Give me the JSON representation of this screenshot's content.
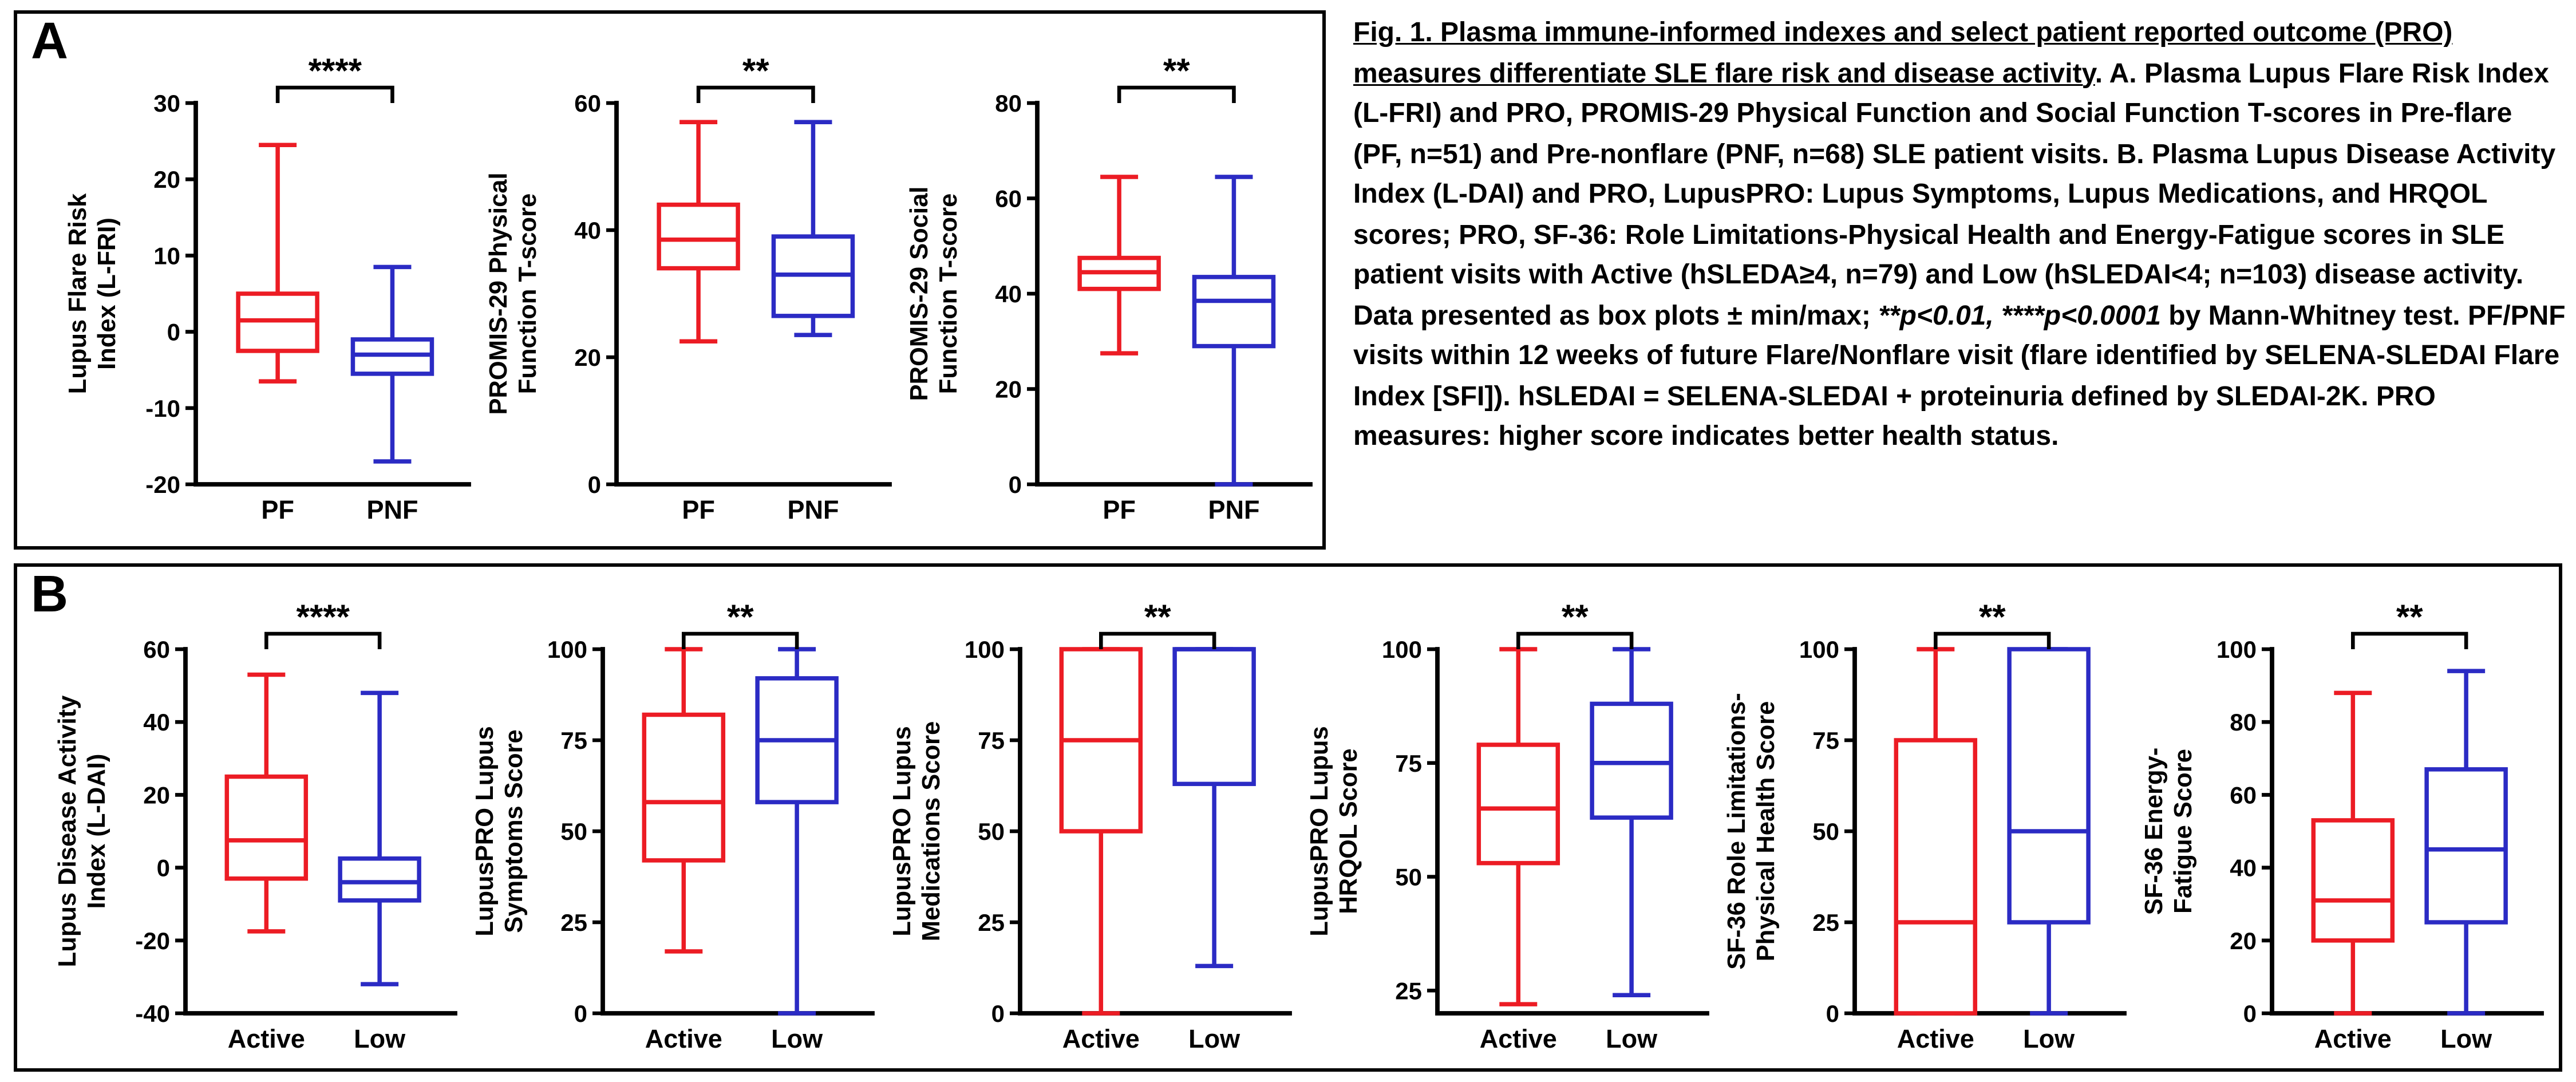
{
  "figure": {
    "panel_a_label": "A",
    "panel_b_label": "B",
    "group_colors": {
      "red": "#EC1C24",
      "blue": "#2B2BC4"
    }
  },
  "caption": {
    "segments": [
      {
        "text": "Fig. 1. ",
        "bold": true,
        "underline": true
      },
      {
        "text": "Plasma immune-informed indexes and select patient reported outcome (PRO) measures differentiate SLE flare risk and disease activity",
        "underline": true
      },
      {
        "text": ". "
      },
      {
        "text": "A.",
        "bold": true
      },
      {
        "text": " Plasma Lupus Flare Risk Index (L-FRI) and PRO, PROMIS-29 Physical Function and Social Function T-scores in Pre-flare (PF, n=51) and Pre-nonflare (PNF, n=68) SLE patient visits. "
      },
      {
        "text": "B.",
        "bold": true
      },
      {
        "text": " Plasma Lupus Disease Activity Index (L-DAI) and PRO, LupusPRO: Lupus Symptoms, Lupus Medications, and HRQOL scores; PRO, SF-36: Role Limitations-Physical Health and Energy-Fatigue scores in SLE patient visits with Active (hSLEDA≥4, n=79) and Low (hSLEDAI<4; n=103) disease activity. Data presented as box plots ± min/max; "
      },
      {
        "text": "**p<0.01, ****p<0.0001",
        "bold": true,
        "italic": true
      },
      {
        "text": " by Mann-Whitney test. PF/PNF visits within 12 weeks of future Flare/Nonflare visit (flare identified by SELENA-SLEDAI Flare Index [SFI]). hSLEDAI = SELENA-SLEDAI + proteinuria defined by SLEDAI-2K. PRO measures: higher score indicates better health status."
      }
    ]
  },
  "chart_data": [
    {
      "panel": "A",
      "type": "box",
      "id": "l-fri",
      "title": "",
      "xlabel": "",
      "ylabel_lines": [
        "Lupus Flare Risk",
        "Index (L-FRI)"
      ],
      "ylim": [
        -20,
        30
      ],
      "yticks": [
        -20,
        -10,
        0,
        10,
        20,
        30
      ],
      "categories": [
        "PF",
        "PNF"
      ],
      "series_colors": [
        "#EC1C24",
        "#2B2BC4"
      ],
      "boxes": [
        {
          "group": "PF",
          "min": -6.5,
          "q1": -2.5,
          "median": 1.5,
          "q3": 5,
          "max": 24.5
        },
        {
          "group": "PNF",
          "min": -17,
          "q1": -5.5,
          "median": -3,
          "q3": -1,
          "max": 8.5
        }
      ],
      "significance": "****"
    },
    {
      "panel": "A",
      "type": "box",
      "id": "promis29-physical-function",
      "title": "",
      "xlabel": "",
      "ylabel_lines": [
        "PROMIS-29 Physical",
        "Function T-score"
      ],
      "ylim": [
        0,
        60
      ],
      "yticks": [
        0,
        20,
        40,
        60
      ],
      "categories": [
        "PF",
        "PNF"
      ],
      "series_colors": [
        "#EC1C24",
        "#2B2BC4"
      ],
      "boxes": [
        {
          "group": "PF",
          "min": 22.5,
          "q1": 34,
          "median": 38.5,
          "q3": 44,
          "max": 57
        },
        {
          "group": "PNF",
          "min": 23.5,
          "q1": 26.5,
          "median": 33,
          "q3": 39,
          "max": 57
        }
      ],
      "significance": "**"
    },
    {
      "panel": "A",
      "type": "box",
      "id": "promis29-social-function",
      "title": "",
      "xlabel": "",
      "ylabel_lines": [
        "PROMIS-29 Social",
        "Function T-score"
      ],
      "ylim": [
        0,
        80
      ],
      "yticks": [
        0,
        20,
        40,
        60,
        80
      ],
      "categories": [
        "PF",
        "PNF"
      ],
      "series_colors": [
        "#EC1C24",
        "#2B2BC4"
      ],
      "boxes": [
        {
          "group": "PF",
          "min": 27.5,
          "q1": 41,
          "median": 44.5,
          "q3": 47.5,
          "max": 64.5
        },
        {
          "group": "PNF",
          "min": 0,
          "q1": 29,
          "median": 38.5,
          "q3": 43.5,
          "max": 64.5
        }
      ],
      "significance": "**"
    },
    {
      "panel": "B",
      "type": "box",
      "id": "l-dai",
      "title": "",
      "xlabel": "",
      "ylabel_lines": [
        "Lupus Disease Activity",
        "Index (L-DAI)"
      ],
      "ylim": [
        -40,
        60
      ],
      "yticks": [
        -40,
        -20,
        0,
        20,
        40,
        60
      ],
      "categories": [
        "Active",
        "Low"
      ],
      "series_colors": [
        "#EC1C24",
        "#2B2BC4"
      ],
      "boxes": [
        {
          "group": "Active",
          "min": -17.5,
          "q1": -3,
          "median": 7.5,
          "q3": 25,
          "max": 53
        },
        {
          "group": "Low",
          "min": -32,
          "q1": -9,
          "median": -4,
          "q3": 2.5,
          "max": 48
        }
      ],
      "significance": "****"
    },
    {
      "panel": "B",
      "type": "box",
      "id": "lupuspro-symptoms",
      "title": "",
      "xlabel": "",
      "ylabel_lines": [
        "LupusPRO Lupus",
        "Symptoms Score"
      ],
      "ylim": [
        0,
        100
      ],
      "yticks": [
        0,
        25,
        50,
        75,
        100
      ],
      "categories": [
        "Active",
        "Low"
      ],
      "series_colors": [
        "#EC1C24",
        "#2B2BC4"
      ],
      "boxes": [
        {
          "group": "Active",
          "min": 17,
          "q1": 42,
          "median": 58,
          "q3": 82,
          "max": 100
        },
        {
          "group": "Low",
          "min": 0,
          "q1": 58,
          "median": 75,
          "q3": 92,
          "max": 100
        }
      ],
      "significance": "**"
    },
    {
      "panel": "B",
      "type": "box",
      "id": "lupuspro-medications",
      "title": "",
      "xlabel": "",
      "ylabel_lines": [
        "LupusPRO Lupus",
        "Medications Score"
      ],
      "ylim": [
        0,
        100
      ],
      "yticks": [
        0,
        25,
        50,
        75,
        100
      ],
      "categories": [
        "Active",
        "Low"
      ],
      "series_colors": [
        "#EC1C24",
        "#2B2BC4"
      ],
      "boxes": [
        {
          "group": "Active",
          "min": 0,
          "q1": 50,
          "median": 75,
          "q3": 100,
          "max": 100
        },
        {
          "group": "Low",
          "min": 13,
          "q1": 63,
          "median": 100,
          "q3": 100,
          "max": 100
        }
      ],
      "significance": "**"
    },
    {
      "panel": "B",
      "type": "box",
      "id": "lupuspro-hrqol",
      "title": "",
      "xlabel": "",
      "ylabel_lines": [
        "LupusPRO Lupus",
        "HRQOL Score"
      ],
      "ylim": [
        20,
        100
      ],
      "yticks": [
        25,
        50,
        75,
        100
      ],
      "categories": [
        "Active",
        "Low"
      ],
      "series_colors": [
        "#EC1C24",
        "#2B2BC4"
      ],
      "boxes": [
        {
          "group": "Active",
          "min": 22,
          "q1": 53,
          "median": 65,
          "q3": 79,
          "max": 100
        },
        {
          "group": "Low",
          "min": 24,
          "q1": 63,
          "median": 75,
          "q3": 88,
          "max": 100
        }
      ],
      "significance": "**"
    },
    {
      "panel": "B",
      "type": "box",
      "id": "sf36-role-limitations-physical",
      "title": "",
      "xlabel": "",
      "ylabel_lines": [
        "SF-36 Role Limitations-",
        "Physical Health Score"
      ],
      "ylim": [
        0,
        100
      ],
      "yticks": [
        0,
        25,
        50,
        75,
        100
      ],
      "categories": [
        "Active",
        "Low"
      ],
      "series_colors": [
        "#EC1C24",
        "#2B2BC4"
      ],
      "boxes": [
        {
          "group": "Active",
          "min": 0,
          "q1": 0,
          "median": 25,
          "q3": 75,
          "max": 100
        },
        {
          "group": "Low",
          "min": 0,
          "q1": 25,
          "median": 50,
          "q3": 100,
          "max": 100
        }
      ],
      "significance": "**"
    },
    {
      "panel": "B",
      "type": "box",
      "id": "sf36-energy-fatigue",
      "title": "",
      "xlabel": "",
      "ylabel_lines": [
        "SF-36 Energy-",
        "Fatigue Score"
      ],
      "ylim": [
        0,
        100
      ],
      "yticks": [
        0,
        20,
        40,
        60,
        80,
        100
      ],
      "categories": [
        "Active",
        "Low"
      ],
      "series_colors": [
        "#EC1C24",
        "#2B2BC4"
      ],
      "boxes": [
        {
          "group": "Active",
          "min": 0,
          "q1": 20,
          "median": 31,
          "q3": 53,
          "max": 88
        },
        {
          "group": "Low",
          "min": 0,
          "q1": 25,
          "median": 45,
          "q3": 67,
          "max": 94
        }
      ],
      "significance": "**"
    }
  ]
}
